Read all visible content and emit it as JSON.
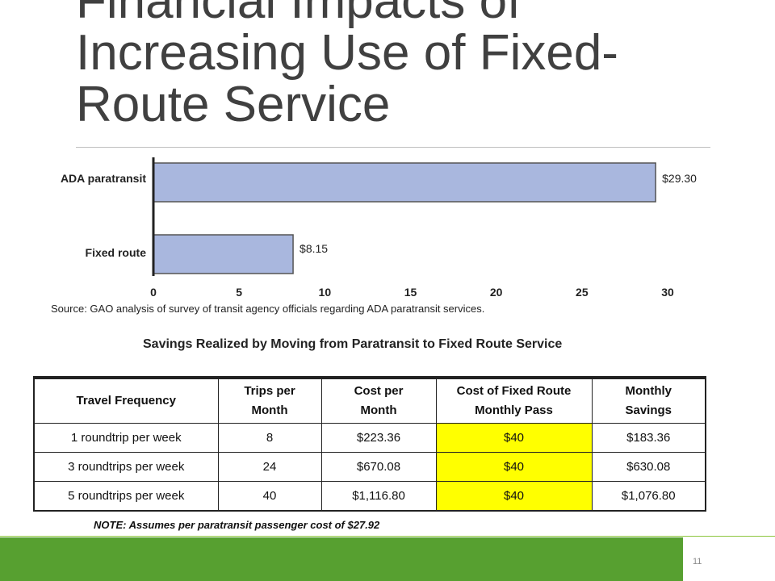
{
  "slide": {
    "title": "Financial Impacts of\nIncreasing Use of Fixed-\nRoute Service",
    "page_number": "11"
  },
  "chart": {
    "source": "Source: GAO analysis of survey of transit agency officials regarding ADA paratransit services."
  },
  "chart_data": {
    "type": "bar",
    "orientation": "horizontal",
    "categories": [
      "ADA paratransit",
      "Fixed route"
    ],
    "values": [
      29.3,
      8.15
    ],
    "value_labels": [
      "$29.30",
      "$8.15"
    ],
    "xlim": [
      0,
      30
    ],
    "xticks": [
      "0",
      "5",
      "10",
      "15",
      "20",
      "25",
      "30"
    ],
    "grid": false,
    "bar_color": "#a9b7de"
  },
  "table": {
    "title": "Savings Realized by Moving from Paratransit to Fixed Route Service",
    "headers": [
      [
        "Travel Frequency"
      ],
      [
        "Trips per",
        "Month"
      ],
      [
        "Cost per",
        "Month"
      ],
      [
        "Cost of Fixed Route",
        "Monthly Pass"
      ],
      [
        "Monthly",
        "Savings"
      ]
    ],
    "rows": [
      [
        "1 roundtrip per week",
        "8",
        "$223.36",
        "$40",
        "$183.36"
      ],
      [
        "3 roundtrips per week",
        "24",
        "$670.08",
        "$40",
        "$630.08"
      ],
      [
        "5 roundtrips per week",
        "40",
        "$1,116.80",
        "$40",
        "$1,076.80"
      ]
    ],
    "highlight_color": "#ffff00"
  },
  "note": "NOTE: Assumes per paratransit passenger cost of $27.92",
  "colors": {
    "footer_green": "#57a030",
    "footer_line": "#8dc63f"
  }
}
